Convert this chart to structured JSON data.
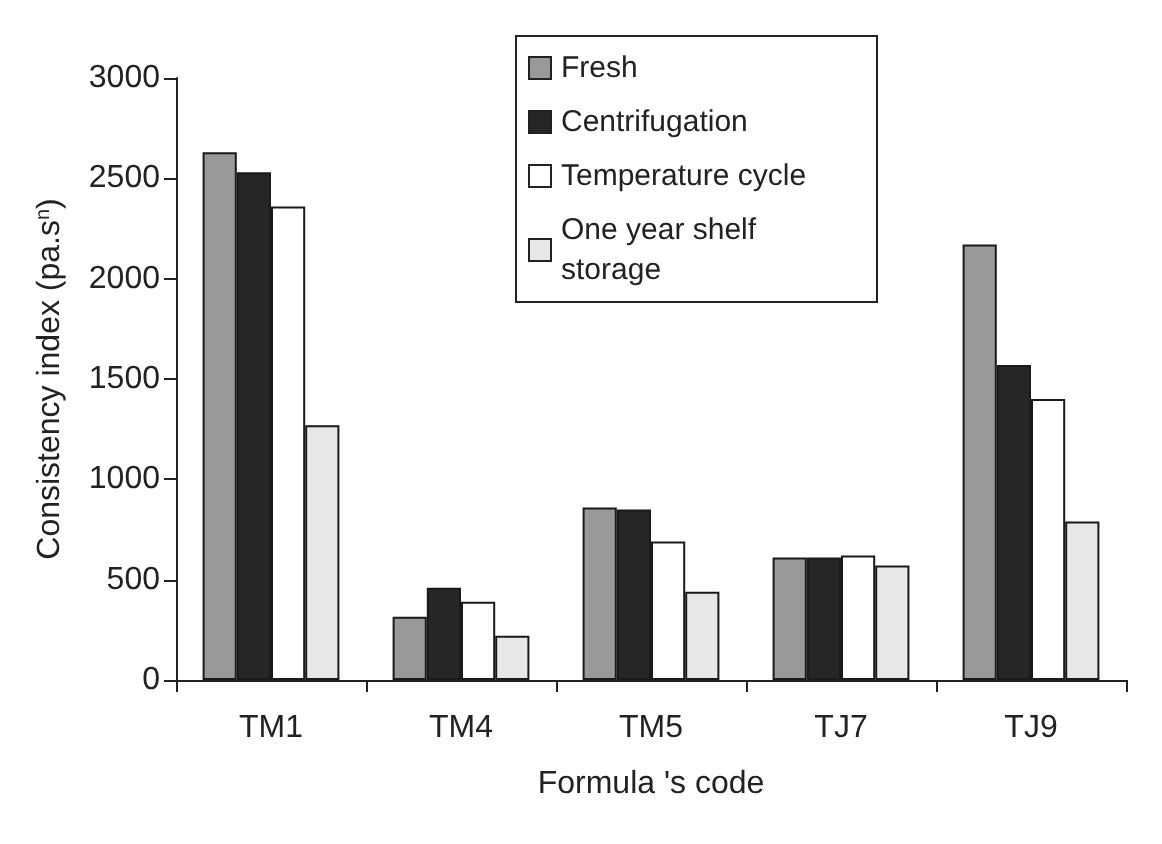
{
  "chart_data": {
    "type": "bar",
    "xlabel": "Formula 's code",
    "ylabel": "Consistency index (pa.s$^{n}$)",
    "categories": [
      "TM1",
      "TM4",
      "TM5",
      "TJ7",
      "TJ9"
    ],
    "series": [
      {
        "name": "Fresh",
        "color": "#999999",
        "values": [
          2630,
          315,
          860,
          610,
          2170
        ]
      },
      {
        "name": "Centrifugation",
        "color": "#262626",
        "values": [
          2530,
          460,
          850,
          610,
          1570
        ]
      },
      {
        "name": "Temperature cycle",
        "color": "#ffffff",
        "values": [
          2360,
          390,
          690,
          620,
          1400
        ]
      },
      {
        "name": "One year shelf storage",
        "color": "#e6e8e8",
        "values": [
          1270,
          220,
          440,
          570,
          790
        ]
      }
    ],
    "ylim": [
      0,
      3000
    ],
    "yticks": [
      0,
      500,
      1000,
      1500,
      2000,
      2500,
      3000
    ],
    "grid": false,
    "legend": "top"
  }
}
